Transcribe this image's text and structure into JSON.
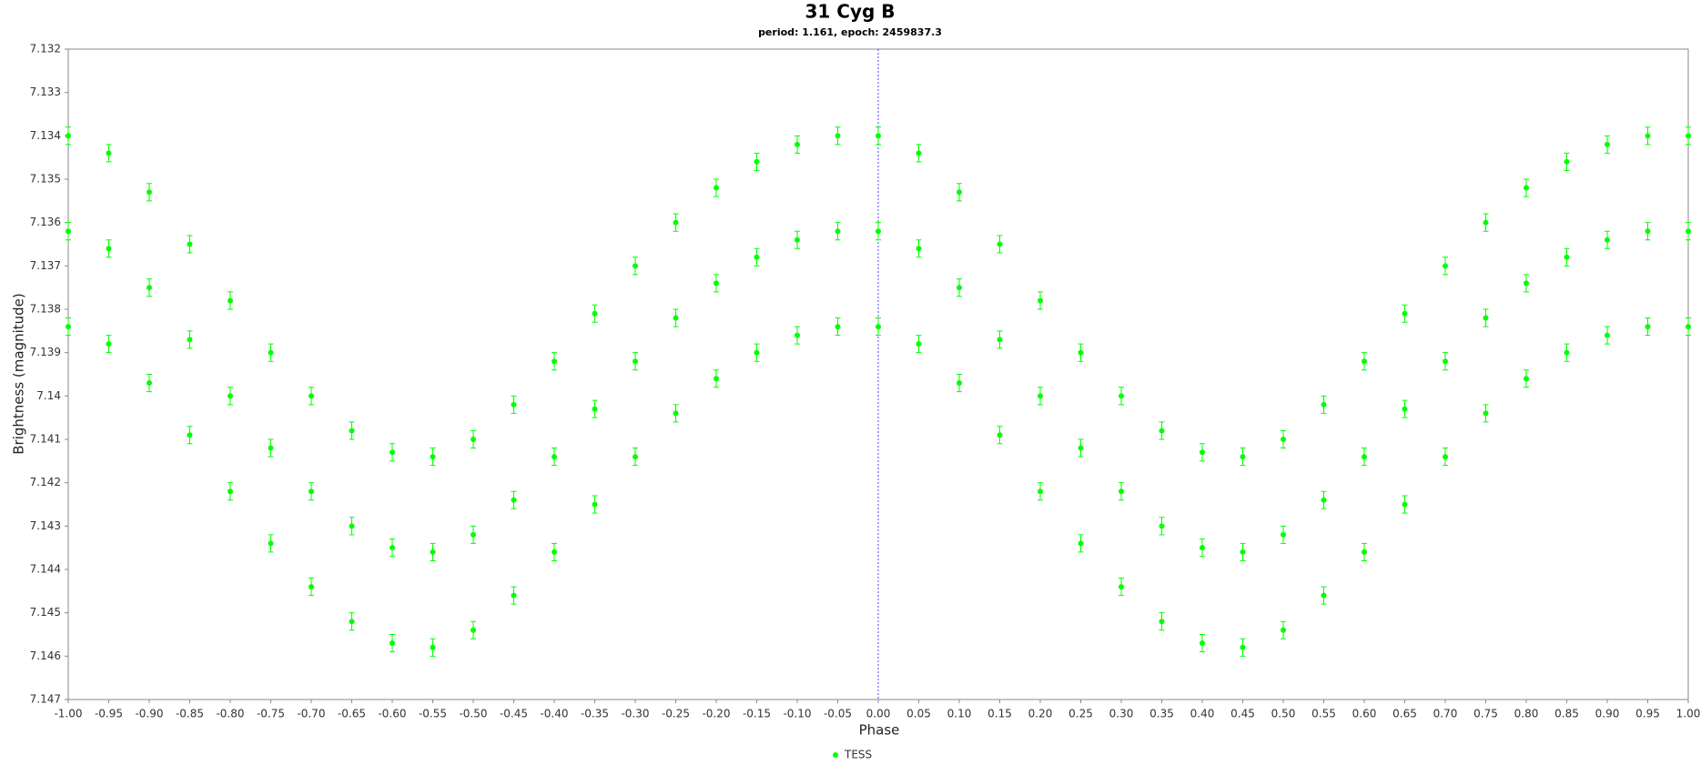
{
  "chart_data": {
    "type": "scatter",
    "title": "31 Cyg B",
    "subtitle": "period: 1.161, epoch: 2459837.3",
    "x_label": "Phase",
    "y_label": "Brightness (magnitude)",
    "xlim": [
      -1,
      1
    ],
    "ylim": [
      7.132,
      7.147
    ],
    "y_inverted": true,
    "grid": false,
    "vline": 0,
    "vline_color": "#4a4aff",
    "legend": "bottom",
    "xticks": [
      {
        "value": -1,
        "label": "-1.00"
      },
      {
        "value": -0.95,
        "label": "-0.95"
      },
      {
        "value": -0.9,
        "label": "-0.90"
      },
      {
        "value": -0.85,
        "label": "-0.85"
      },
      {
        "value": -0.8,
        "label": "-0.80"
      },
      {
        "value": -0.75,
        "label": "-0.75"
      },
      {
        "value": -0.7,
        "label": "-0.70"
      },
      {
        "value": -0.65,
        "label": "-0.65"
      },
      {
        "value": -0.6,
        "label": "-0.60"
      },
      {
        "value": -0.55,
        "label": "-0.55"
      },
      {
        "value": -0.5,
        "label": "-0.50"
      },
      {
        "value": -0.45,
        "label": "-0.45"
      },
      {
        "value": -0.4,
        "label": "-0.40"
      },
      {
        "value": -0.35,
        "label": "-0.35"
      },
      {
        "value": -0.3,
        "label": "-0.30"
      },
      {
        "value": -0.25,
        "label": "-0.25"
      },
      {
        "value": -0.2,
        "label": "-0.20"
      },
      {
        "value": -0.15,
        "label": "-0.15"
      },
      {
        "value": -0.1,
        "label": "-0.10"
      },
      {
        "value": -0.05,
        "label": "-0.05"
      },
      {
        "value": 0,
        "label": "0.00"
      },
      {
        "value": 0.05,
        "label": "0.05"
      },
      {
        "value": 0.1,
        "label": "0.10"
      },
      {
        "value": 0.15,
        "label": "0.15"
      },
      {
        "value": 0.2,
        "label": "0.20"
      },
      {
        "value": 0.25,
        "label": "0.25"
      },
      {
        "value": 0.3,
        "label": "0.30"
      },
      {
        "value": 0.35,
        "label": "0.35"
      },
      {
        "value": 0.4,
        "label": "0.40"
      },
      {
        "value": 0.45,
        "label": "0.45"
      },
      {
        "value": 0.5,
        "label": "0.50"
      },
      {
        "value": 0.55,
        "label": "0.55"
      },
      {
        "value": 0.6,
        "label": "0.60"
      },
      {
        "value": 0.65,
        "label": "0.65"
      },
      {
        "value": 0.7,
        "label": "0.70"
      },
      {
        "value": 0.75,
        "label": "0.75"
      },
      {
        "value": 0.8,
        "label": "0.80"
      },
      {
        "value": 0.85,
        "label": "0.85"
      },
      {
        "value": 0.9,
        "label": "0.90"
      },
      {
        "value": 0.95,
        "label": "0.95"
      },
      {
        "value": 1,
        "label": "1.00"
      }
    ],
    "yticks": [
      7.132,
      7.133,
      7.134,
      7.135,
      7.136,
      7.137,
      7.138,
      7.139,
      7.14,
      7.141,
      7.142,
      7.143,
      7.144,
      7.145,
      7.146,
      7.147
    ],
    "x": [
      -1,
      -1,
      -1,
      -0.95,
      -0.95,
      -0.95,
      -0.9,
      -0.9,
      -0.9,
      -0.85,
      -0.85,
      -0.85,
      -0.8,
      -0.8,
      -0.8,
      -0.75,
      -0.75,
      -0.75,
      -0.7,
      -0.7,
      -0.7,
      -0.65,
      -0.65,
      -0.65,
      -0.6,
      -0.6,
      -0.6,
      -0.55,
      -0.55,
      -0.55,
      -0.5,
      -0.5,
      -0.5,
      -0.45,
      -0.45,
      -0.45,
      -0.4,
      -0.4,
      -0.4,
      -0.35,
      -0.35,
      -0.35,
      -0.3,
      -0.3,
      -0.3,
      -0.25,
      -0.25,
      -0.25,
      -0.2,
      -0.2,
      -0.2,
      -0.15,
      -0.15,
      -0.15,
      -0.1,
      -0.1,
      -0.1,
      -0.05,
      -0.05,
      -0.05,
      0,
      0,
      0,
      0.05,
      0.05,
      0.05,
      0.1,
      0.1,
      0.1,
      0.15,
      0.15,
      0.15,
      0.2,
      0.2,
      0.2,
      0.25,
      0.25,
      0.25,
      0.3,
      0.3,
      0.3,
      0.35,
      0.35,
      0.35,
      0.4,
      0.4,
      0.4,
      0.45,
      0.45,
      0.45,
      0.5,
      0.5,
      0.5,
      0.55,
      0.55,
      0.55,
      0.6,
      0.6,
      0.6,
      0.65,
      0.65,
      0.65,
      0.7,
      0.7,
      0.7,
      0.75,
      0.75,
      0.75,
      0.8,
      0.8,
      0.8,
      0.85,
      0.85,
      0.85,
      0.9,
      0.9,
      0.9,
      0.95,
      0.95,
      0.95,
      1,
      1,
      1
    ],
    "series": [
      {
        "name": "TESS",
        "color": "#00ff00",
        "error": 0.0002,
        "values": [
          7.134,
          7.1362,
          7.1384,
          7.1344,
          7.1366,
          7.1388,
          7.1353,
          7.1375,
          7.1397,
          7.1365,
          7.1387,
          7.1409,
          7.1378,
          7.14,
          7.1422,
          7.139,
          7.1412,
          7.1434,
          7.14,
          7.1422,
          7.1444,
          7.1408,
          7.143,
          7.1452,
          7.1413,
          7.1435,
          7.1457,
          7.1414,
          7.1436,
          7.1458,
          7.141,
          7.1432,
          7.1454,
          7.1402,
          7.1424,
          7.1446,
          7.1392,
          7.1414,
          7.1436,
          7.1381,
          7.1403,
          7.1425,
          7.137,
          7.1392,
          7.1414,
          7.136,
          7.1382,
          7.1404,
          7.1352,
          7.1374,
          7.1396,
          7.1346,
          7.1368,
          7.139,
          7.1342,
          7.1364,
          7.1386,
          7.134,
          7.1362,
          7.1384,
          7.134,
          7.1362,
          7.1384,
          7.1344,
          7.1366,
          7.1388,
          7.1353,
          7.1375,
          7.1397,
          7.1365,
          7.1387,
          7.1409,
          7.1378,
          7.14,
          7.1422,
          7.139,
          7.1412,
          7.1434,
          7.14,
          7.1422,
          7.1444,
          7.1408,
          7.143,
          7.1452,
          7.1413,
          7.1435,
          7.1457,
          7.1414,
          7.1436,
          7.1458,
          7.141,
          7.1432,
          7.1454,
          7.1402,
          7.1424,
          7.1446,
          7.1392,
          7.1414,
          7.1436,
          7.1381,
          7.1403,
          7.1425,
          7.137,
          7.1392,
          7.1414,
          7.136,
          7.1382,
          7.1404,
          7.1352,
          7.1374,
          7.1396,
          7.1346,
          7.1368,
          7.139,
          7.1342,
          7.1364,
          7.1386,
          7.134,
          7.1362,
          7.1384,
          7.134,
          7.1362,
          7.1384
        ]
      }
    ]
  }
}
